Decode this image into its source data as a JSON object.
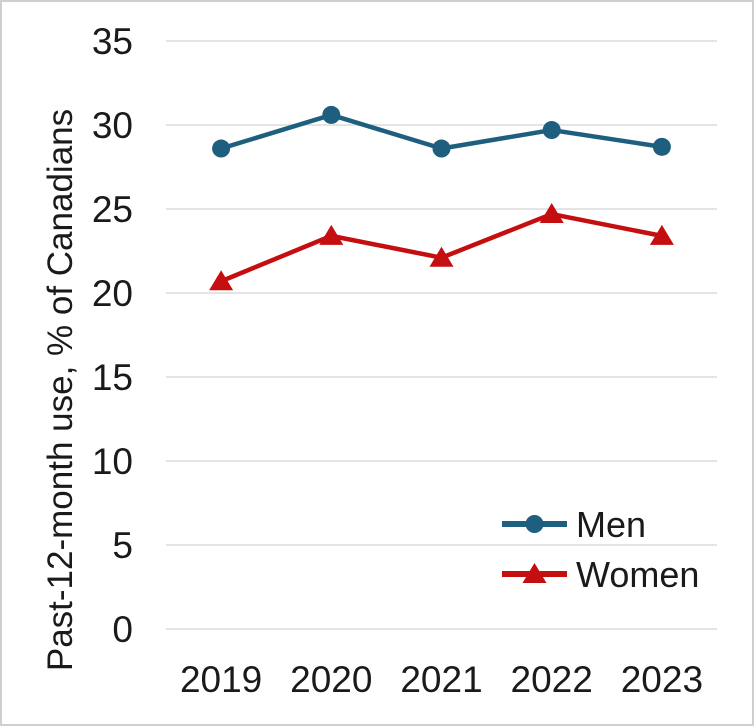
{
  "chart_data": {
    "type": "line",
    "title": "",
    "ylabel": "Past-12-month use, % of Canadians",
    "xlabel": "",
    "categories": [
      "2019",
      "2020",
      "2021",
      "2022",
      "2023"
    ],
    "series": [
      {
        "name": "Men",
        "marker": "circle",
        "color": "#1e5f80",
        "values": [
          28.6,
          30.6,
          28.6,
          29.7,
          28.7
        ]
      },
      {
        "name": "Women",
        "marker": "triangle",
        "color": "#c40e10",
        "values": [
          20.7,
          23.4,
          22.1,
          24.7,
          23.4
        ]
      }
    ],
    "ylim": [
      0,
      35
    ],
    "y_ticks": [
      0,
      5,
      10,
      15,
      20,
      25,
      30,
      35
    ],
    "grid": "horizontal",
    "gridline_color": "#dcdcdc",
    "text_color": "#1a1a1a",
    "legend_position": "inside-bottom-right",
    "frame_border_color": "#cfcfcf"
  }
}
